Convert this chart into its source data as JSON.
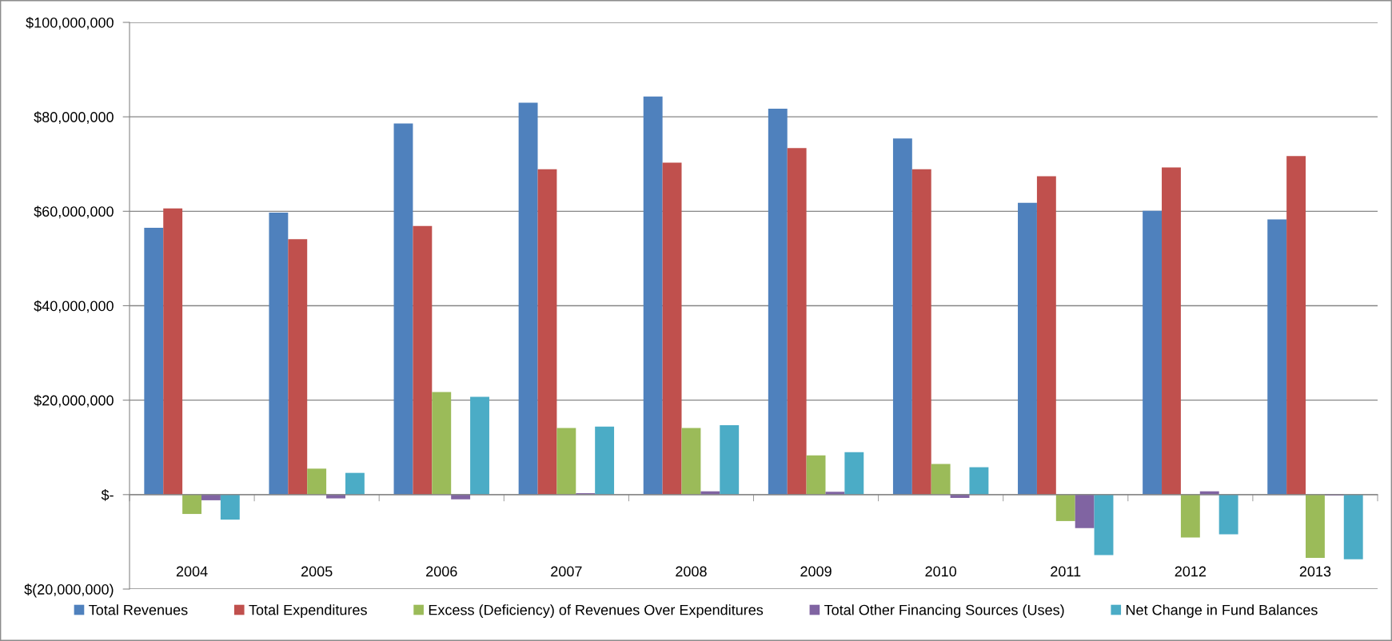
{
  "chart_data": {
    "type": "bar",
    "categories": [
      "2004",
      "2005",
      "2006",
      "2007",
      "2008",
      "2009",
      "2010",
      "2011",
      "2012",
      "2013"
    ],
    "series": [
      {
        "name": "Total Revenues",
        "color": "#4f81bd",
        "values": [
          56500000,
          59700000,
          78600000,
          83000000,
          84300000,
          81700000,
          75400000,
          61800000,
          60100000,
          58300000
        ]
      },
      {
        "name": "Total Expenditures",
        "color": "#c0504d",
        "values": [
          60600000,
          54100000,
          56900000,
          68900000,
          70300000,
          73400000,
          68900000,
          67400000,
          69300000,
          71700000
        ]
      },
      {
        "name": "Excess (Deficiency) of Revenues Over Expenditures",
        "color": "#9bbb59",
        "values": [
          -4100000,
          5500000,
          21700000,
          14100000,
          14100000,
          8300000,
          6500000,
          -5600000,
          -9100000,
          -13400000
        ]
      },
      {
        "name": "Total Other Financing Sources (Uses)",
        "color": "#8064a2",
        "values": [
          -1200000,
          -800000,
          -1000000,
          300000,
          700000,
          600000,
          -700000,
          -7100000,
          700000,
          -200000
        ]
      },
      {
        "name": "Net Change in Fund Balances",
        "color": "#4bacc6",
        "values": [
          -5300000,
          4600000,
          20700000,
          14400000,
          14700000,
          9000000,
          5800000,
          -12800000,
          -8400000,
          -13700000
        ]
      }
    ],
    "ylim": [
      -20000000,
      100000000
    ],
    "yticks": [
      {
        "value": -20000000,
        "label": "$(20,000,000)"
      },
      {
        "value": 0,
        "label": "$-"
      },
      {
        "value": 20000000,
        "label": "$20,000,000"
      },
      {
        "value": 40000000,
        "label": "$40,000,000"
      },
      {
        "value": 60000000,
        "label": "$60,000,000"
      },
      {
        "value": 80000000,
        "label": "$80,000,000"
      },
      {
        "value": 100000000,
        "label": "$100,000,000"
      }
    ],
    "grid": "y",
    "legend": "bottom"
  }
}
